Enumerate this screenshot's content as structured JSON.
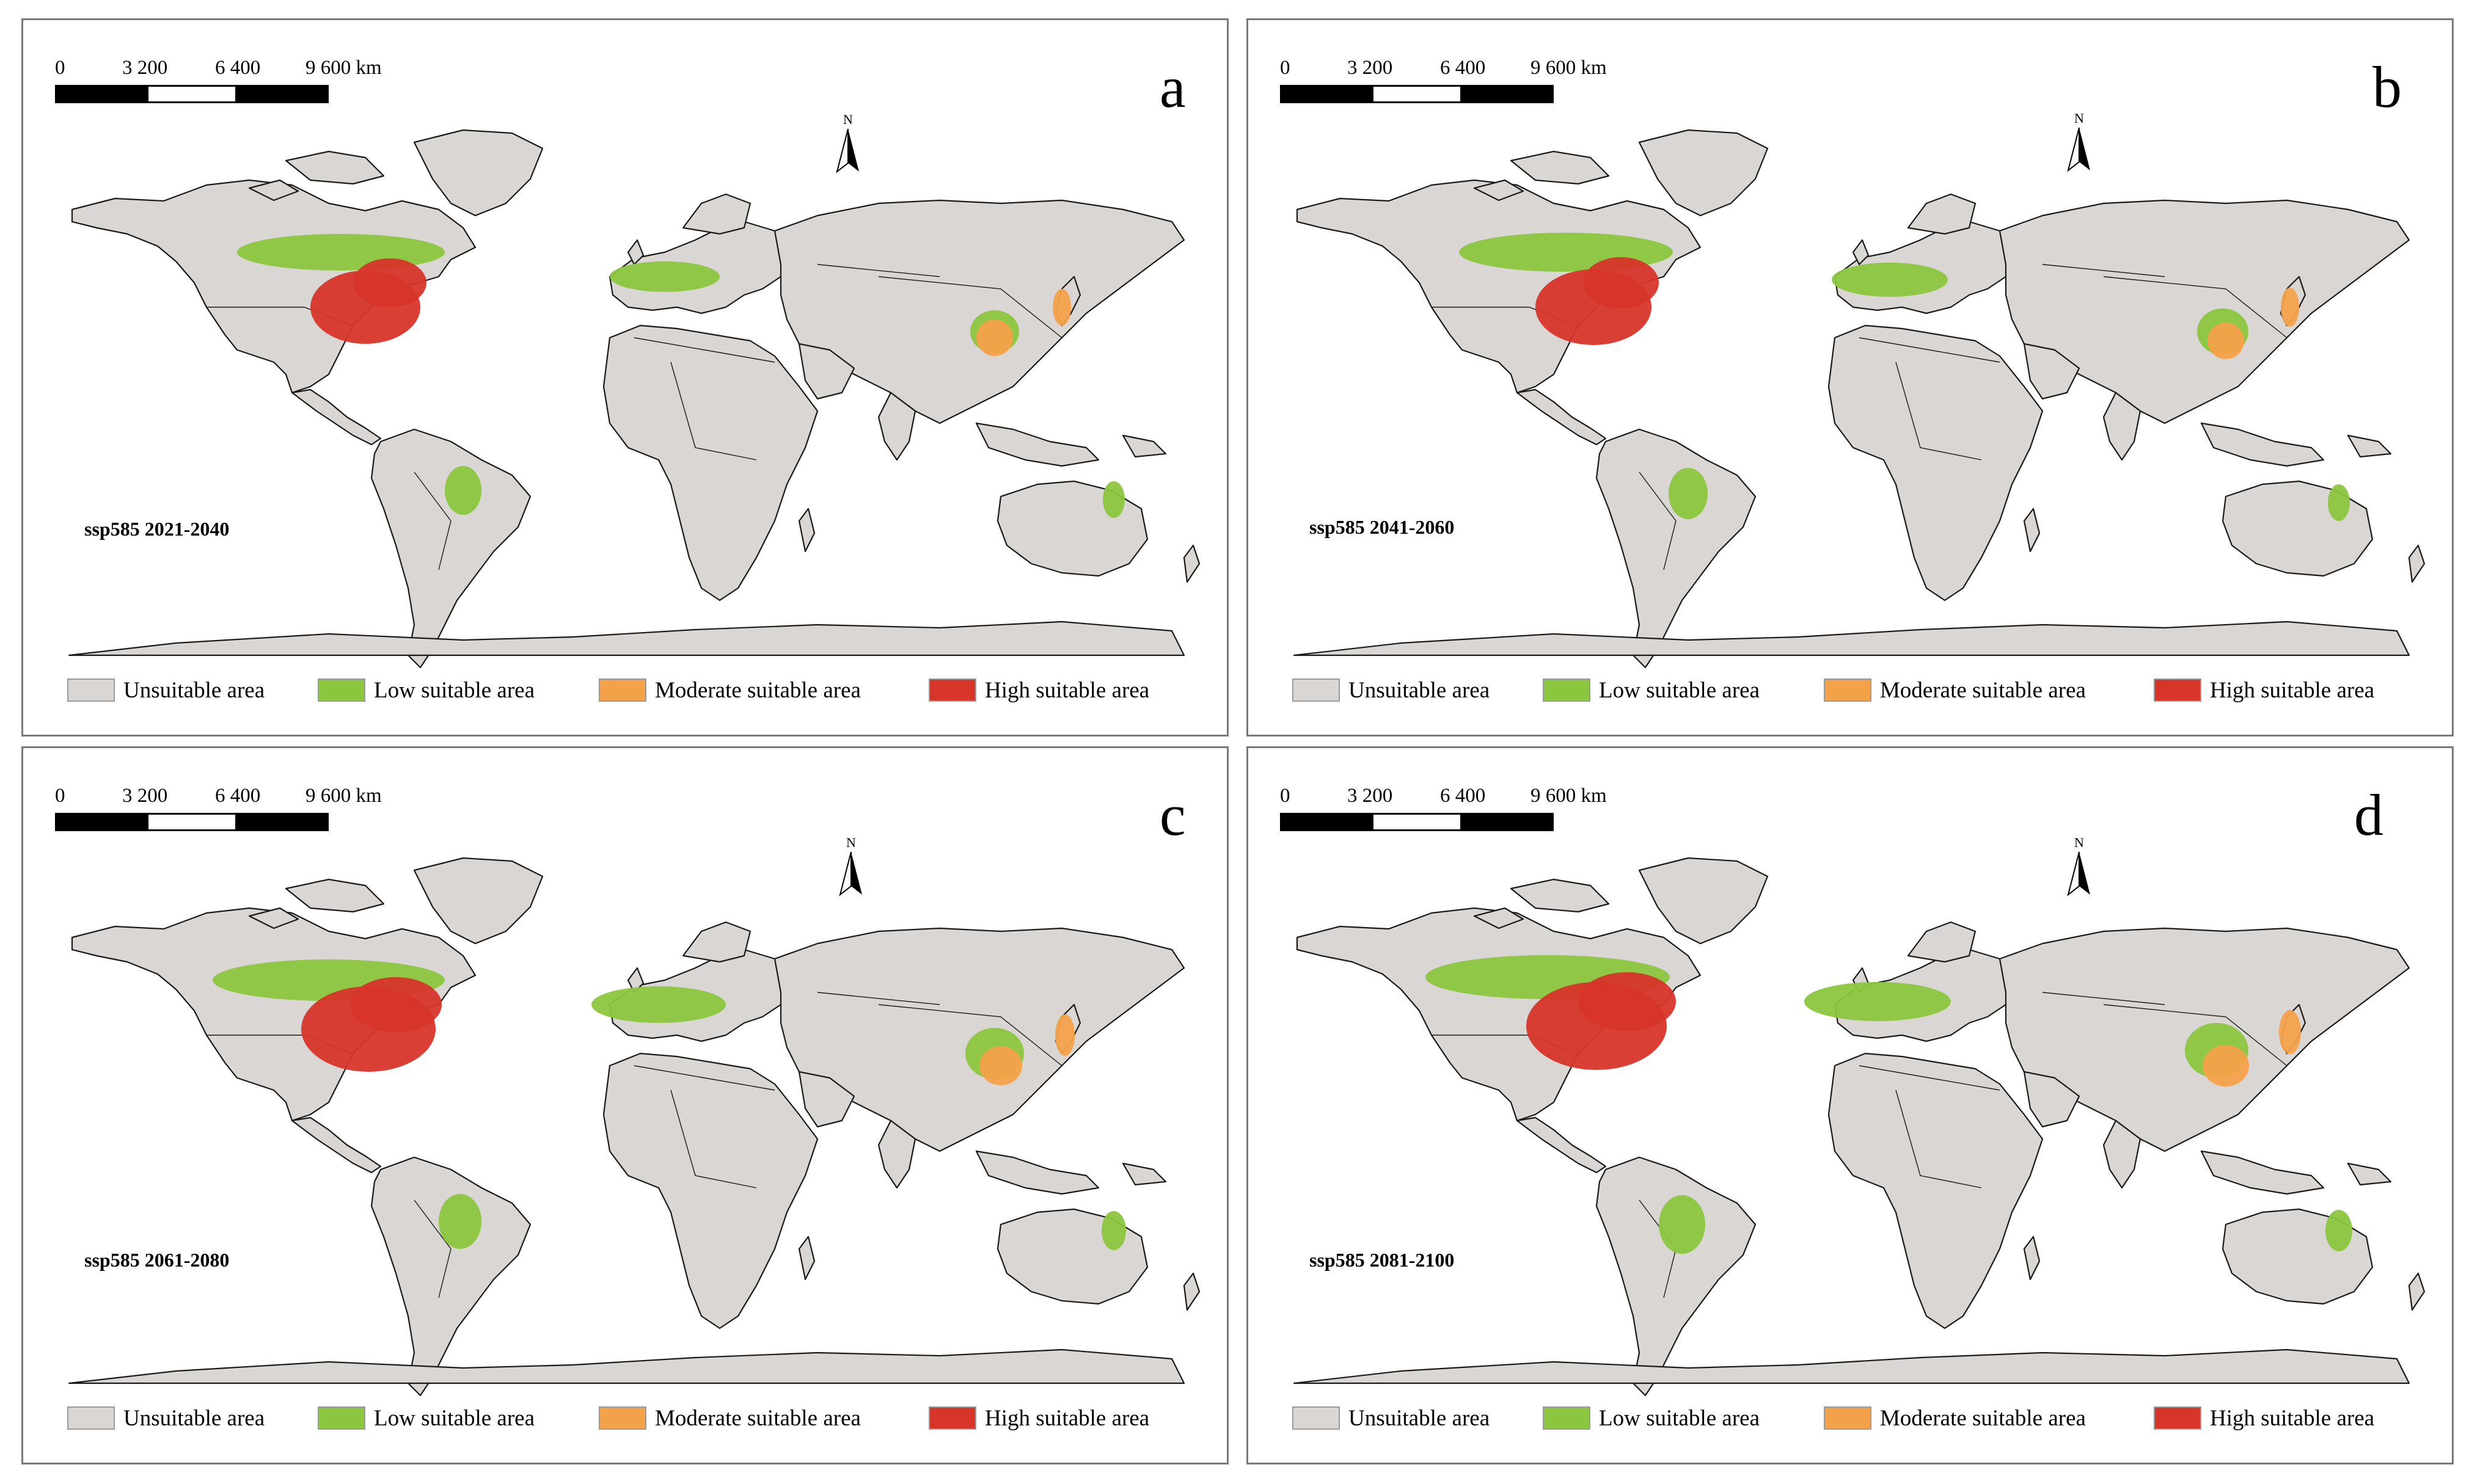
{
  "legend_colors": {
    "unsuitable": "#d9d6d3",
    "low": "#8cc63f",
    "moderate": "#f4a24a",
    "high": "#d7352a"
  },
  "legend": [
    {
      "key": "unsuitable",
      "label": "Unsuitable area"
    },
    {
      "key": "low",
      "label": "Low suitable area"
    },
    {
      "key": "moderate",
      "label": "Moderate suitable area"
    },
    {
      "key": "high",
      "label": "High suitable area"
    }
  ],
  "scale_bar": {
    "labels": [
      "0",
      "3 200",
      "6 400",
      "9 600 km"
    ]
  },
  "north_label": "N",
  "panels": [
    {
      "letter": "a",
      "period": "ssp585 2021-2040"
    },
    {
      "letter": "b",
      "period": "ssp585 2041-2060"
    },
    {
      "letter": "c",
      "period": "ssp585 2061-2080"
    },
    {
      "letter": "d",
      "period": "ssp585 2081-2100"
    }
  ]
}
